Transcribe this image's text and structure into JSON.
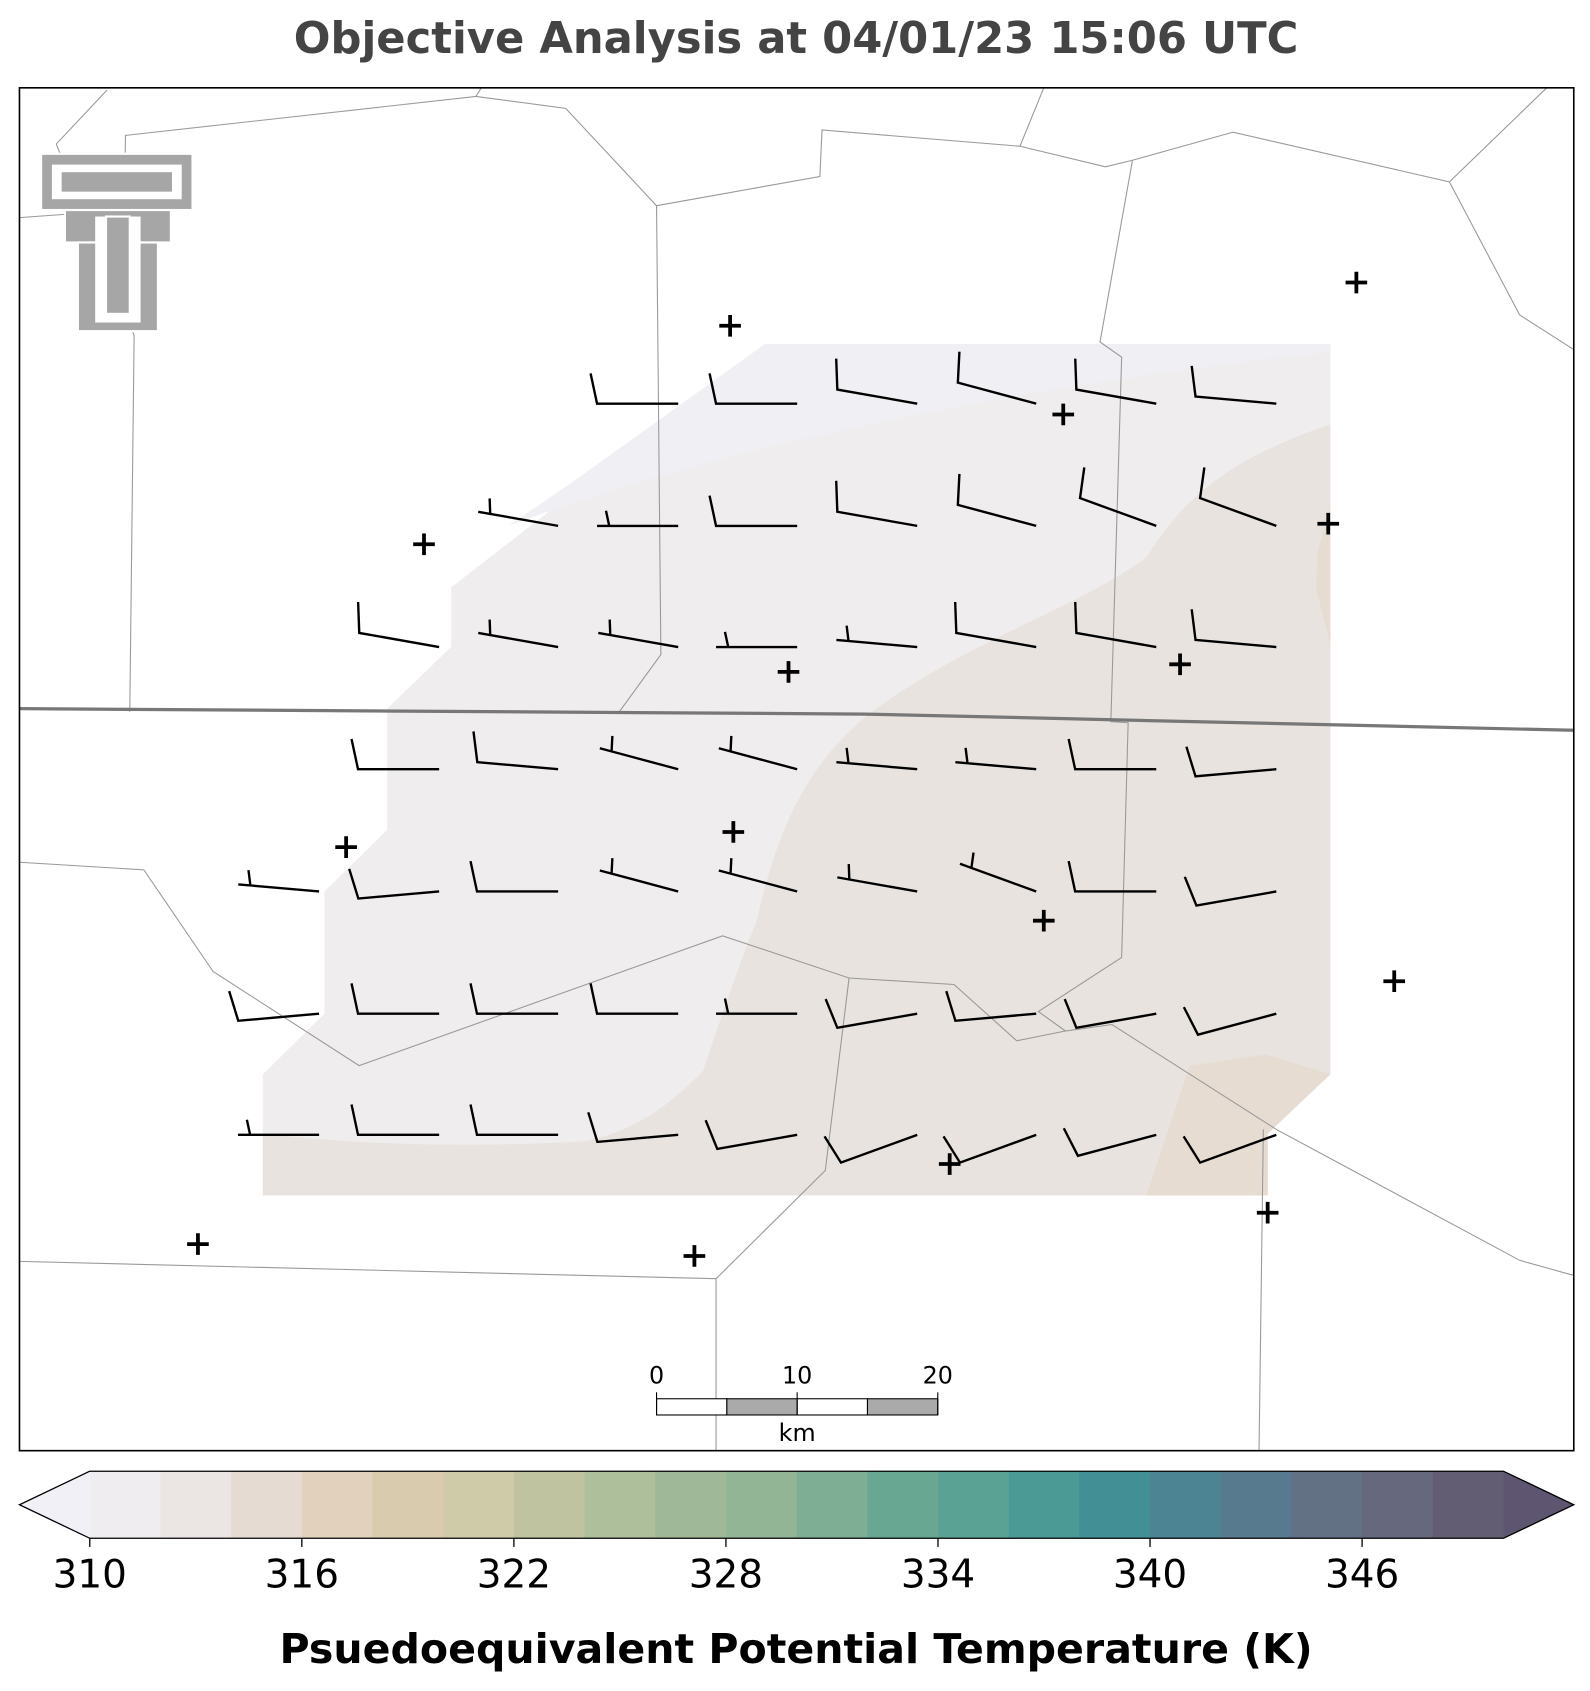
{
  "title": "Objective Analysis at 04/01/23 15:06 UTC",
  "wind_barbs": {
    "direction": [
      [
        null,
        null,
        null,
        270,
        270,
        280,
        285,
        280,
        275
      ],
      [
        null,
        null,
        280,
        270,
        270,
        280,
        285,
        290,
        290
      ],
      [
        null,
        280,
        280,
        280,
        270,
        275,
        280,
        280,
        275
      ],
      [
        null,
        270,
        275,
        285,
        285,
        275,
        275,
        270,
        265
      ],
      [
        275,
        265,
        270,
        285,
        285,
        280,
        290,
        270,
        260
      ],
      [
        265,
        270,
        270,
        270,
        270,
        260,
        265,
        260,
        255
      ],
      [
        270,
        270,
        270,
        265,
        260,
        250,
        250,
        255,
        250
      ]
    ],
    "speed": [
      [
        null,
        null,
        null,
        10,
        10,
        10,
        10,
        10,
        10
      ],
      [
        null,
        null,
        5,
        5,
        10,
        10,
        10,
        10,
        10
      ],
      [
        null,
        10,
        5,
        5,
        5,
        5,
        10,
        10,
        10
      ],
      [
        null,
        10,
        10,
        5,
        5,
        5,
        5,
        10,
        10
      ],
      [
        5,
        10,
        10,
        5,
        5,
        5,
        5,
        10,
        10
      ],
      [
        10,
        10,
        10,
        10,
        5,
        10,
        10,
        10,
        10
      ],
      [
        5,
        10,
        10,
        10,
        10,
        10,
        10,
        10,
        10
      ]
    ]
  },
  "scale_bar": {
    "ticks": [
      0,
      10,
      20
    ],
    "unit": "km"
  },
  "colorbar": {
    "label": "Psuedoequivalent Potential Temperature (K)",
    "lim": [
      310,
      350
    ],
    "ticks": [
      310,
      316,
      322,
      328,
      334,
      340,
      346
    ],
    "colors": [
      "#efedef",
      "#ebe6e3",
      "#e5dbd2",
      "#e1d1bd",
      "#d8cbae",
      "#cfcaa8",
      "#bfc39f",
      "#aebf9c",
      "#9fb998",
      "#92b596",
      "#7eae93",
      "#68a892",
      "#5aa394",
      "#4b9a96",
      "#438f96",
      "#4c8494",
      "#587a8e",
      "#627184",
      "#66687d",
      "#635d74"
    ],
    "under_color": "#f1f0f6",
    "over_color": "#5e5670"
  }
}
